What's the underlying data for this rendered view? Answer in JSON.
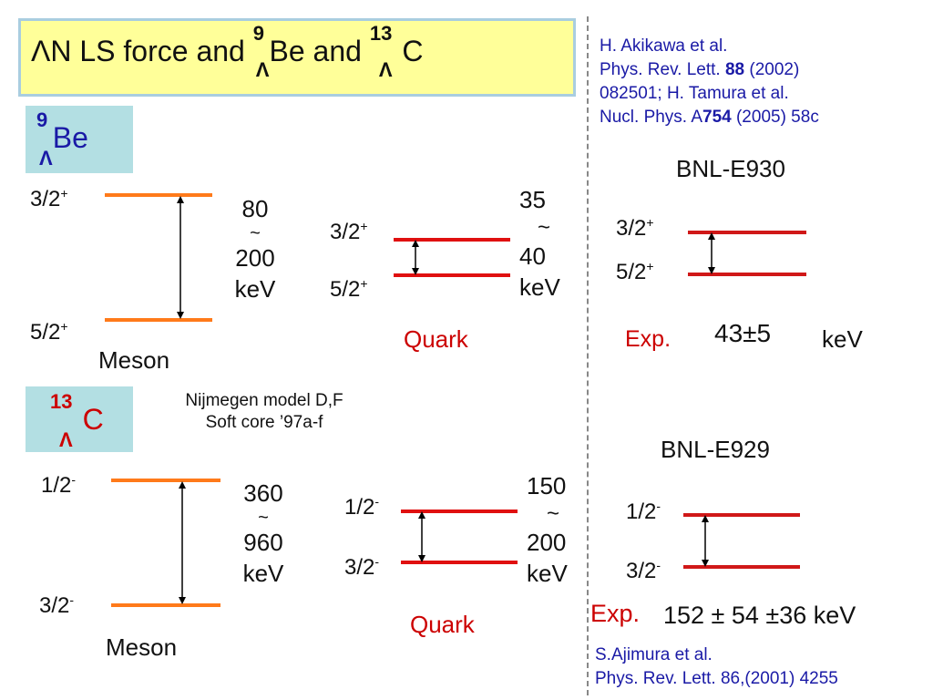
{
  "title": {
    "pre": "ΛN  LS force  and  ",
    "be_sup": "9",
    "be_main": "Be",
    "and2": "  and ",
    "c_sup": "13",
    "c_main": "C",
    "lambda_sub": "Λ"
  },
  "references": {
    "top_line1": "H. Akikawa et al.",
    "top_line2_pre": "Phys. Rev. Lett. ",
    "top_line2_bold": "88",
    "top_line2_post": " (2002)",
    "top_line3": "082501; H. Tamura et al.",
    "top_line4_pre": "Nucl. Phys. A",
    "top_line4_bold": "754",
    "top_line4_post": " (2005) 58c",
    "bottom_line1": "S.Ajimura et al.",
    "bottom_line2": "Phys. Rev. Lett. 86,(2001) 4255"
  },
  "be_section": {
    "nucleus_sup": "9",
    "nucleus_main": "Be",
    "nucleus_sub": "Λ",
    "meson": {
      "upper_level": "3/2",
      "upper_parity": "+",
      "lower_level": "5/2",
      "lower_parity": "+",
      "range_line1": "80",
      "range_tilde": "~",
      "range_line2": "200",
      "range_unit": "keV",
      "model_label": "Meson"
    },
    "quark": {
      "upper_level": "3/2",
      "upper_parity": "+",
      "lower_level": "5/2",
      "lower_parity": "+",
      "range_line1": "35",
      "range_tilde": "~",
      "range_line2": "40",
      "range_unit": "keV",
      "model_label": "Quark"
    },
    "exp": {
      "experiment": "BNL-E930",
      "upper_level": "3/2",
      "upper_parity": "+",
      "lower_level": "5/2",
      "lower_parity": "+",
      "label": "Exp.",
      "value": "43±5",
      "unit": "keV"
    }
  },
  "model_note": {
    "line1": "Nijmegen model D,F",
    "line2": "Soft core ’97a-f"
  },
  "c_section": {
    "nucleus_sup": "13",
    "nucleus_main": "C",
    "nucleus_sub": "Λ",
    "meson": {
      "upper_level": "1/2",
      "upper_parity": "-",
      "lower_level": "3/2",
      "lower_parity": "-",
      "range_line1": "360",
      "range_tilde": "~",
      "range_line2": "960",
      "range_unit": "keV",
      "model_label": "Meson"
    },
    "quark": {
      "upper_level": "1/2",
      "upper_parity": "-",
      "lower_level": "3/2",
      "lower_parity": "-",
      "range_line1": "150",
      "range_tilde": "~",
      "range_line2": "200",
      "range_unit": "keV",
      "model_label": "Quark"
    },
    "exp": {
      "experiment": "BNL-E929",
      "upper_level": "1/2",
      "upper_parity": "-",
      "lower_level": "3/2",
      "lower_parity": "-",
      "label": "Exp.",
      "value": "152 ± 54 ±36 keV"
    }
  },
  "colors": {
    "meson_line": "#ff7a1a",
    "quark_line": "#e01010",
    "exp_line": "#d01818",
    "accent_red": "#cc0000",
    "ref_blue": "#1a1aa6",
    "title_bg": "#ffff99",
    "nucleus_bg": "#b3dfe3"
  }
}
